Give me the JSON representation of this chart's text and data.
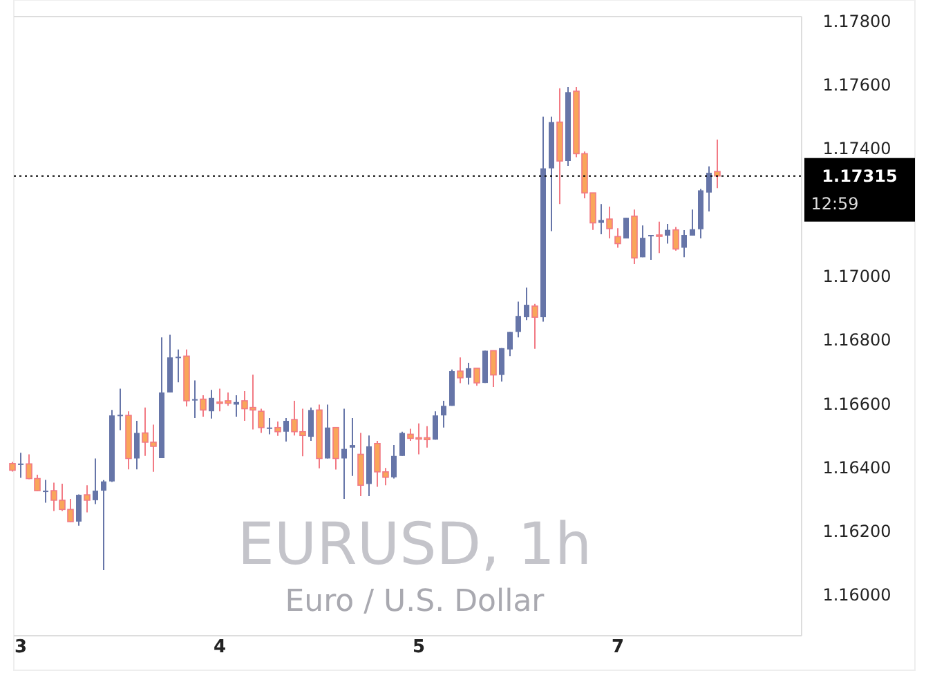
{
  "chart_data": {
    "type": "candlestick",
    "title": "EURUSD, 1h",
    "subtitle": "Euro / U.S. Dollar",
    "categories": [
      null,
      "3",
      null,
      null,
      null,
      null,
      null,
      null,
      null,
      null,
      null,
      null,
      null,
      null,
      null,
      null,
      null,
      null,
      null,
      null,
      null,
      null,
      null,
      null,
      null,
      "4",
      null,
      null,
      null,
      null,
      null,
      null,
      null,
      null,
      null,
      null,
      null,
      null,
      null,
      null,
      null,
      null,
      null,
      null,
      null,
      null,
      null,
      null,
      null,
      "5",
      null,
      null,
      null,
      null,
      null,
      null,
      null,
      null,
      null,
      null,
      null,
      null,
      null,
      null,
      null,
      null,
      null,
      null,
      null,
      null,
      null,
      null,
      null,
      "7",
      null,
      null,
      null,
      null,
      null,
      null,
      null,
      null,
      null,
      null,
      null,
      null,
      null,
      null,
      null,
      null,
      null,
      null,
      null,
      null,
      null,
      null
    ],
    "ohlc": [
      [
        1.16413,
        1.16418,
        1.16388,
        1.16392
      ],
      [
        1.1641,
        1.16447,
        1.16368,
        1.16413
      ],
      [
        1.16412,
        1.16442,
        1.16364,
        1.16366
      ],
      [
        1.16366,
        1.16378,
        1.16326,
        1.16328
      ],
      [
        1.16326,
        1.16362,
        1.1629,
        1.16328
      ],
      [
        1.16328,
        1.16353,
        1.16264,
        1.16298
      ],
      [
        1.16298,
        1.1635,
        1.16264,
        1.16269
      ],
      [
        1.16269,
        1.16302,
        1.1623,
        1.16231
      ],
      [
        1.16231,
        1.16316,
        1.16218,
        1.16315
      ],
      [
        1.16315,
        1.16345,
        1.1626,
        1.16298
      ],
      [
        1.16298,
        1.16429,
        1.16286,
        1.16328
      ],
      [
        1.16328,
        1.16361,
        1.16079,
        1.16357
      ],
      [
        1.16357,
        1.16581,
        1.16355,
        1.16564
      ],
      [
        1.16564,
        1.16648,
        1.16518,
        1.16566
      ],
      [
        1.16564,
        1.16577,
        1.16395,
        1.16429
      ],
      [
        1.16429,
        1.16547,
        1.16395,
        1.16509
      ],
      [
        1.16509,
        1.16589,
        1.16437,
        1.1648
      ],
      [
        1.1648,
        1.16535,
        1.16387,
        1.16467
      ],
      [
        1.1643,
        1.16809,
        1.1643,
        1.16636
      ],
      [
        1.16636,
        1.16817,
        1.16636,
        1.16746
      ],
      [
        1.16746,
        1.16771,
        1.16668,
        1.16748
      ],
      [
        1.1675,
        1.16771,
        1.16592,
        1.1661
      ],
      [
        1.16613,
        1.16674,
        1.16556,
        1.16615
      ],
      [
        1.16615,
        1.16627,
        1.1656,
        1.16581
      ],
      [
        1.16577,
        1.16644,
        1.16554,
        1.16619
      ],
      [
        1.16606,
        1.16648,
        1.16577,
        1.16602
      ],
      [
        1.1661,
        1.16636,
        1.16594,
        1.16602
      ],
      [
        1.16598,
        1.16627,
        1.1656,
        1.16606
      ],
      [
        1.1661,
        1.1664,
        1.16547,
        1.16585
      ],
      [
        1.16589,
        1.16692,
        1.1652,
        1.16581
      ],
      [
        1.16577,
        1.16585,
        1.16509,
        1.16526
      ],
      [
        1.16524,
        1.16556,
        1.16505,
        1.16526
      ],
      [
        1.16526,
        1.16545,
        1.165,
        1.16513
      ],
      [
        1.16513,
        1.16556,
        1.16482,
        1.16547
      ],
      [
        1.16551,
        1.1661,
        1.16501,
        1.16513
      ],
      [
        1.16513,
        1.16585,
        1.16436,
        1.16501
      ],
      [
        1.16497,
        1.16589,
        1.16484,
        1.16581
      ],
      [
        1.16581,
        1.16598,
        1.16398,
        1.16429
      ],
      [
        1.16429,
        1.16598,
        1.16429,
        1.16526
      ],
      [
        1.16526,
        1.16526,
        1.16394,
        1.16429
      ],
      [
        1.16429,
        1.16585,
        1.16302,
        1.16459
      ],
      [
        1.16463,
        1.16556,
        1.16374,
        1.16471
      ],
      [
        1.16442,
        1.16509,
        1.16311,
        1.16345
      ],
      [
        1.16349,
        1.16501,
        1.16311,
        1.16467
      ],
      [
        1.16476,
        1.16484,
        1.1634,
        1.16387
      ],
      [
        1.16387,
        1.16399,
        1.16345,
        1.1637
      ],
      [
        1.1637,
        1.16471,
        1.16366,
        1.16437
      ],
      [
        1.16437,
        1.16513,
        1.16437,
        1.16509
      ],
      [
        1.16505,
        1.16522,
        1.16484,
        1.16492
      ],
      [
        1.16494,
        1.16539,
        1.16442,
        1.16492
      ],
      [
        1.16494,
        1.1653,
        1.16463,
        1.16488
      ],
      [
        1.16488,
        1.16577,
        1.16488,
        1.16564
      ],
      [
        1.16564,
        1.1661,
        1.16526,
        1.16594
      ],
      [
        1.16594,
        1.16708,
        1.16594,
        1.16703
      ],
      [
        1.16703,
        1.16746,
        1.16665,
        1.16682
      ],
      [
        1.16682,
        1.16729,
        1.16661,
        1.16712
      ],
      [
        1.16712,
        1.16712,
        1.16657,
        1.16666
      ],
      [
        1.16666,
        1.16767,
        1.16666,
        1.16767
      ],
      [
        1.16767,
        1.16767,
        1.16653,
        1.16691
      ],
      [
        1.16691,
        1.16775,
        1.1667,
        1.16775
      ],
      [
        1.16771,
        1.16826,
        1.1675,
        1.16826
      ],
      [
        1.16826,
        1.16921,
        1.16809,
        1.16876
      ],
      [
        1.16872,
        1.16965,
        1.16863,
        1.16911
      ],
      [
        1.16907,
        1.16914,
        1.16773,
        1.16872
      ],
      [
        1.16872,
        1.17501,
        1.16858,
        1.17339
      ],
      [
        1.17339,
        1.17501,
        1.17142,
        1.17484
      ],
      [
        1.17484,
        1.1759,
        1.17227,
        1.17362
      ],
      [
        1.17362,
        1.17594,
        1.17347,
        1.17578
      ],
      [
        1.17581,
        1.17594,
        1.17374,
        1.17385
      ],
      [
        1.17385,
        1.17392,
        1.17245,
        1.17262
      ],
      [
        1.17262,
        1.17262,
        1.17146,
        1.17168
      ],
      [
        1.17168,
        1.17227,
        1.17132,
        1.17177
      ],
      [
        1.1718,
        1.17219,
        1.17119,
        1.1715
      ],
      [
        1.17125,
        1.17151,
        1.1709,
        1.17103
      ],
      [
        1.17119,
        1.17184,
        1.17119,
        1.17184
      ],
      [
        1.17189,
        1.1721,
        1.17039,
        1.17058
      ],
      [
        1.1706,
        1.1716,
        1.1706,
        1.17121
      ],
      [
        1.17128,
        1.1713,
        1.17052,
        1.1713
      ],
      [
        1.1713,
        1.17172,
        1.17073,
        1.17128
      ],
      [
        1.17128,
        1.17165,
        1.17103,
        1.17146
      ],
      [
        1.17146,
        1.17155,
        1.17081,
        1.17086
      ],
      [
        1.1709,
        1.17145,
        1.1706,
        1.1713
      ],
      [
        1.17128,
        1.1721,
        1.17128,
        1.17148
      ],
      [
        1.17148,
        1.17274,
        1.17119,
        1.1727
      ],
      [
        1.17263,
        1.17345,
        1.17204,
        1.17325
      ],
      [
        1.17329,
        1.17429,
        1.17277,
        1.17315
      ],
      null,
      null,
      null,
      null,
      null,
      null,
      null,
      null,
      null,
      null
    ],
    "ylim": [
      1.15873,
      1.17815
    ],
    "yticks": [
      {
        "value": 1.16,
        "label": "1.16000"
      },
      {
        "value": 1.162,
        "label": "1.16200"
      },
      {
        "value": 1.164,
        "label": "1.16400"
      },
      {
        "value": 1.166,
        "label": "1.16600"
      },
      {
        "value": 1.168,
        "label": "1.16800"
      },
      {
        "value": 1.17,
        "label": "1.17000"
      },
      {
        "value": 1.174,
        "label": "1.17400"
      },
      {
        "value": 1.176,
        "label": "1.17600"
      },
      {
        "value": 1.178,
        "label": "1.17800"
      }
    ],
    "ref_lines": [
      {
        "axis": "y",
        "value": 1.17315,
        "label": "1.17315",
        "color": "#000000",
        "line_style": "dotted"
      }
    ],
    "annotations": [
      "12:59"
    ]
  }
}
